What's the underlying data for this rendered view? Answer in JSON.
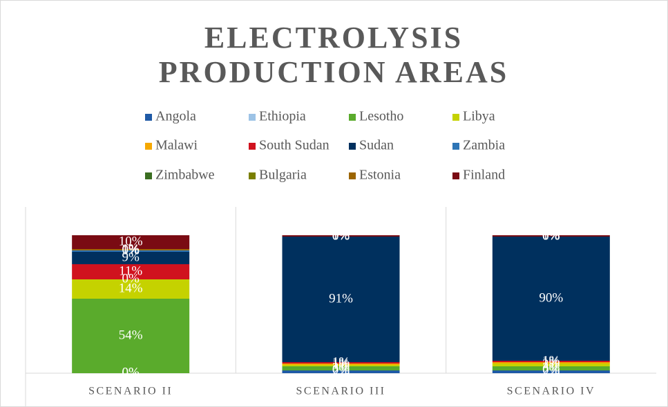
{
  "chart_data": {
    "type": "stacked_bar_100",
    "title": "ELECTROLYSIS PRODUCTION AREAS",
    "categories": [
      "SCENARIO II",
      "SCENARIO III",
      "SCENARIO IV"
    ],
    "ylim": [
      0,
      100
    ],
    "series": [
      {
        "name": "Angola",
        "color": "#1f5aa6",
        "values": [
          0,
          2,
          2
        ],
        "value_labels": [
          "0%",
          "2%",
          "2%"
        ]
      },
      {
        "name": "Ethiopia",
        "color": "#9dc3e6",
        "values": [
          0,
          0,
          0
        ],
        "value_labels": [
          "0%",
          "0%",
          "0%"
        ]
      },
      {
        "name": "Lesotho",
        "color": "#5aab2c",
        "values": [
          54,
          3,
          3
        ],
        "value_labels": [
          "54%",
          "3%",
          "3%"
        ]
      },
      {
        "name": "Libya",
        "color": "#c5d200",
        "values": [
          14,
          1,
          2
        ],
        "value_labels": [
          "14%",
          "1%",
          "2%"
        ]
      },
      {
        "name": "Malawi",
        "color": "#f5a800",
        "values": [
          0,
          1,
          1
        ],
        "value_labels": [
          "0%",
          "1%",
          "1%"
        ]
      },
      {
        "name": "South Sudan",
        "color": "#d0121e",
        "values": [
          11,
          1,
          1
        ],
        "value_labels": [
          "11%",
          "1%",
          "1%"
        ]
      },
      {
        "name": "Sudan",
        "color": "#00305e",
        "values": [
          9,
          91,
          90
        ],
        "value_labels": [
          "9%",
          "91%",
          "90%"
        ]
      },
      {
        "name": "Zambia",
        "color": "#2e75b6",
        "values": [
          1,
          0,
          0
        ],
        "value_labels": [
          "1%",
          "0%",
          "0%"
        ]
      },
      {
        "name": "Zimbabwe",
        "color": "#3b6e22",
        "values": [
          0,
          0,
          0
        ],
        "value_labels": [
          "0%",
          "0%",
          "0%"
        ]
      },
      {
        "name": "Bulgaria",
        "color": "#7a7f00",
        "values": [
          0,
          0,
          0
        ],
        "value_labels": [
          "0%",
          "0%",
          "0%"
        ]
      },
      {
        "name": "Estonia",
        "color": "#9c6500",
        "values": [
          1,
          0,
          0
        ],
        "value_labels": [
          "1%",
          "0%",
          "0%"
        ]
      },
      {
        "name": "Finland",
        "color": "#7a0b13",
        "values": [
          10,
          1,
          1
        ],
        "value_labels": [
          "10%",
          "1%",
          "1%"
        ]
      }
    ]
  }
}
